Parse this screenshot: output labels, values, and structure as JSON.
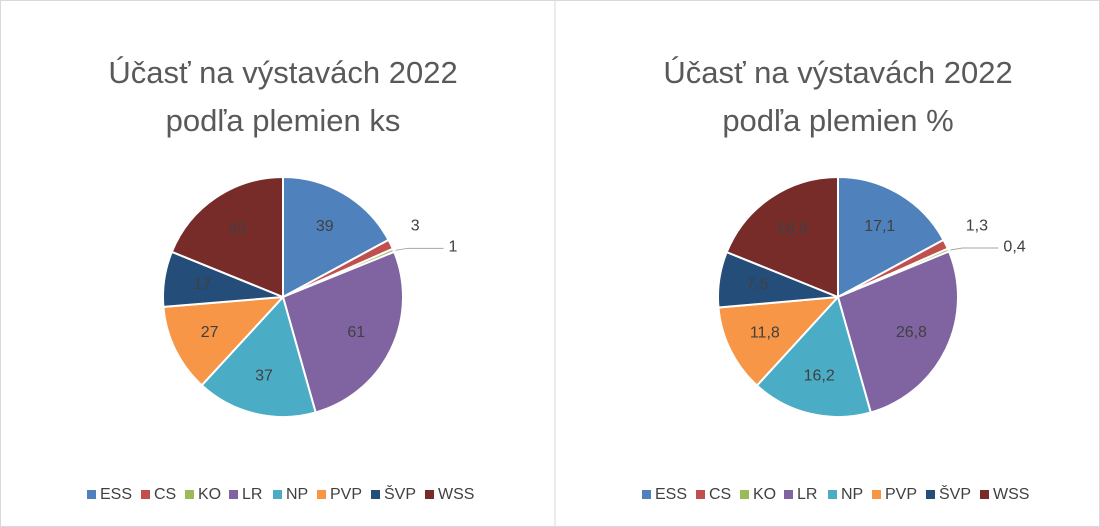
{
  "chart_data": [
    {
      "type": "pie",
      "title": [
        "Účasť na výstavách 2022",
        "podľa plemien ks"
      ],
      "categories": [
        "ESS",
        "CS",
        "KO",
        "LR",
        "NP",
        "PVP",
        "ŠVP",
        "WSS"
      ],
      "values": [
        39,
        3,
        1,
        61,
        37,
        27,
        17,
        43
      ],
      "colors": [
        "#4f81bd",
        "#c0504d",
        "#9bbb59",
        "#8064a2",
        "#4bacc6",
        "#f79646",
        "#254d7a",
        "#772c2a"
      ]
    },
    {
      "type": "pie",
      "title": [
        "Účasť na výstavách 2022",
        "podľa plemien %"
      ],
      "categories": [
        "ESS",
        "CS",
        "KO",
        "LR",
        "NP",
        "PVP",
        "ŠVP",
        "WSS"
      ],
      "values": [
        17.1,
        1.3,
        0.4,
        26.8,
        16.2,
        11.8,
        7.5,
        18.9
      ],
      "value_labels": [
        "17,1",
        "1,3",
        "0,4",
        "26,8",
        "16,2",
        "11,8",
        "7,5",
        "18,9"
      ],
      "colors": [
        "#4f81bd",
        "#c0504d",
        "#9bbb59",
        "#8064a2",
        "#4bacc6",
        "#f79646",
        "#254d7a",
        "#772c2a"
      ]
    }
  ]
}
